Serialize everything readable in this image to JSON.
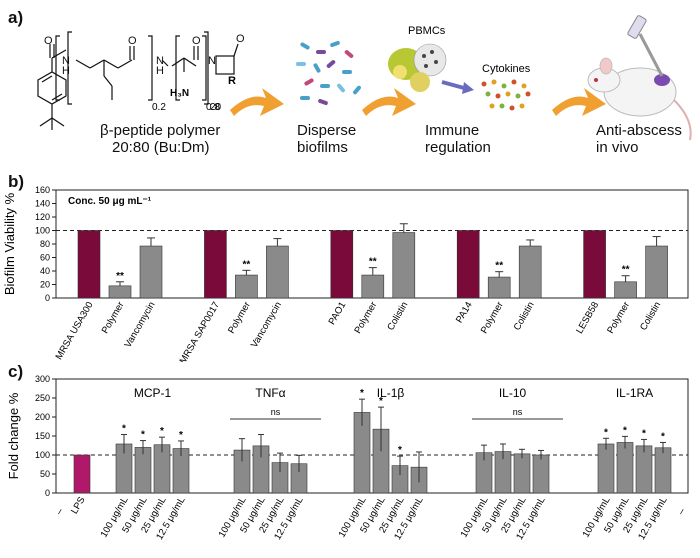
{
  "panel_labels": {
    "a": "a)",
    "b": "b)",
    "c": "c)"
  },
  "schematic": {
    "polymer_name": "β-peptide polymer",
    "polymer_ratio": "20:80 (Bu:Dm)",
    "subscripts": {
      "a": "0.2",
      "b": "0.8",
      "n": "20",
      "h3n": "H₃N",
      "r": "R"
    },
    "steps": [
      {
        "label": "Disperse",
        "label2": "biofilms"
      },
      {
        "label": "Immune",
        "label2": "regulation"
      },
      {
        "label": "Anti-abscess",
        "label2": "in vivo"
      }
    ],
    "small_labels": {
      "pbmcs": "PBMCs",
      "cytokines": "Cytokines"
    },
    "colors": {
      "arrow": "#f0a030",
      "maroon": "#7a0a3a",
      "gray": "#8a8a8a",
      "magenta": "#b0186a"
    }
  },
  "chart_data": [
    {
      "type": "bar",
      "ylabel": "Biofilm Viability %",
      "annotation": "Conc. 50 μg mL⁻¹",
      "ylim": [
        0,
        160
      ],
      "yticks": [
        0,
        20,
        40,
        60,
        80,
        100,
        120,
        140,
        160
      ],
      "reference_line": 100,
      "groups": [
        {
          "categories": [
            "MRSA USA300",
            "Polymer",
            "Vancomycin"
          ],
          "values": [
            100,
            18,
            77
          ],
          "errors": [
            0,
            6,
            12
          ],
          "sig": [
            "",
            "**",
            ""
          ],
          "colors": [
            "#7a0a3a",
            "#8a8a8a",
            "#8a8a8a"
          ]
        },
        {
          "categories": [
            "MRSA SAP0017",
            "Polymer",
            "Vancomycin"
          ],
          "values": [
            100,
            34,
            77
          ],
          "errors": [
            0,
            7,
            11
          ],
          "sig": [
            "",
            "**",
            ""
          ],
          "colors": [
            "#7a0a3a",
            "#8a8a8a",
            "#8a8a8a"
          ]
        },
        {
          "categories": [
            "PAO1",
            "Polymer",
            "Colistin"
          ],
          "values": [
            100,
            34,
            97
          ],
          "errors": [
            0,
            11,
            13
          ],
          "sig": [
            "",
            "**",
            ""
          ],
          "colors": [
            "#7a0a3a",
            "#8a8a8a",
            "#8a8a8a"
          ]
        },
        {
          "categories": [
            "PA14",
            "Polymer",
            "Colistin"
          ],
          "values": [
            100,
            31,
            77
          ],
          "errors": [
            0,
            8,
            9
          ],
          "sig": [
            "",
            "**",
            ""
          ],
          "colors": [
            "#7a0a3a",
            "#8a8a8a",
            "#8a8a8a"
          ]
        },
        {
          "categories": [
            "LESB58",
            "Polymer",
            "Colistin"
          ],
          "values": [
            100,
            24,
            77
          ],
          "errors": [
            0,
            9,
            14
          ],
          "sig": [
            "",
            "**",
            ""
          ],
          "colors": [
            "#7a0a3a",
            "#8a8a8a",
            "#8a8a8a"
          ]
        }
      ]
    },
    {
      "type": "bar",
      "ylabel": "Fold change %",
      "ylim": [
        0,
        300
      ],
      "yticks": [
        0,
        50,
        100,
        150,
        200,
        250,
        300
      ],
      "reference_line": 100,
      "lps": {
        "label": "LPS",
        "value": 100,
        "color": "#b0186a"
      },
      "edge_labels": [
        "–",
        "–"
      ],
      "groups": [
        {
          "name": "MCP-1",
          "categories": [
            "100 μg/mL",
            "50 μg/mL",
            "25 μg/mL",
            "12.5 μg/mL"
          ],
          "values": [
            129,
            120,
            127,
            117
          ],
          "errors": [
            25,
            18,
            20,
            20
          ],
          "sig": [
            "*",
            "*",
            "*",
            "*"
          ],
          "bracket": ""
        },
        {
          "name": "TNFα",
          "categories": [
            "100 μg/mL",
            "50 μg/mL",
            "25 μg/mL",
            "12.5 μg/mL"
          ],
          "values": [
            113,
            124,
            80,
            77
          ],
          "errors": [
            30,
            30,
            25,
            22
          ],
          "sig": [
            "",
            "",
            "",
            ""
          ],
          "bracket": "ns"
        },
        {
          "name": "IL-1β",
          "categories": [
            "100 μg/mL",
            "50 μg/mL",
            "25 μg/mL",
            "12.5 μg/mL"
          ],
          "values": [
            212,
            168,
            72,
            68
          ],
          "errors": [
            35,
            58,
            25,
            40
          ],
          "sig": [
            "*",
            "*",
            "*",
            ""
          ],
          "bracket": ""
        },
        {
          "name": "IL-10",
          "categories": [
            "100 μg/mL",
            "50 μg/mL",
            "25 μg/mL",
            "12.5 μg/mL"
          ],
          "values": [
            106,
            109,
            103,
            100
          ],
          "errors": [
            20,
            20,
            12,
            12
          ],
          "sig": [
            "",
            "",
            "",
            ""
          ],
          "bracket": "ns"
        },
        {
          "name": "IL-1RA",
          "categories": [
            "100 μg/mL",
            "50 μg/mL",
            "25 μg/mL",
            "12.5 μg/mL"
          ],
          "values": [
            129,
            133,
            124,
            119
          ],
          "errors": [
            15,
            16,
            17,
            14
          ],
          "sig": [
            "*",
            "*",
            "*",
            "*"
          ],
          "bracket": ""
        }
      ]
    }
  ]
}
